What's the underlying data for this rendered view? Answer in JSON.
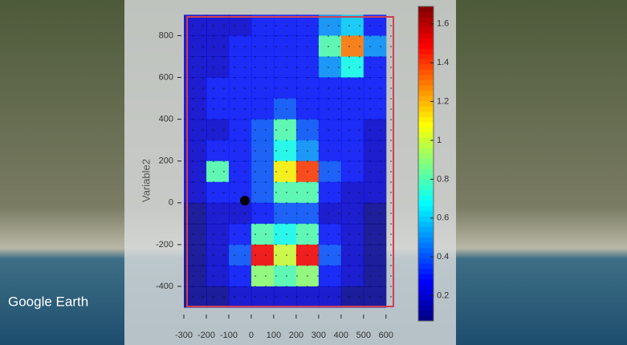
{
  "brand": "Google Earth",
  "chart_data": {
    "type": "heatmap",
    "ylabel": "Variable2",
    "x": [
      -250,
      -150,
      -50,
      50,
      150,
      250,
      350,
      450,
      550
    ],
    "y": [
      850,
      750,
      650,
      550,
      450,
      350,
      250,
      150,
      50,
      -50,
      -150,
      -250,
      -350,
      -450
    ],
    "z": [
      [
        0.2,
        0.2,
        0.2,
        0.3,
        0.3,
        0.3,
        0.5,
        0.6,
        0.3
      ],
      [
        0.2,
        0.2,
        0.3,
        0.3,
        0.3,
        0.3,
        0.8,
        1.3,
        0.5
      ],
      [
        0.2,
        0.2,
        0.3,
        0.3,
        0.3,
        0.3,
        0.5,
        0.7,
        0.3
      ],
      [
        0.2,
        0.3,
        0.3,
        0.3,
        0.3,
        0.3,
        0.3,
        0.3,
        0.3
      ],
      [
        0.2,
        0.3,
        0.3,
        0.3,
        0.4,
        0.3,
        0.3,
        0.3,
        0.3
      ],
      [
        0.2,
        0.2,
        0.3,
        0.4,
        0.8,
        0.4,
        0.3,
        0.3,
        0.2
      ],
      [
        0.2,
        0.3,
        0.3,
        0.4,
        0.7,
        0.5,
        0.3,
        0.3,
        0.2
      ],
      [
        0.2,
        0.8,
        0.3,
        0.4,
        1.1,
        1.4,
        0.4,
        0.3,
        0.2
      ],
      [
        0.2,
        0.3,
        0.3,
        0.4,
        0.8,
        0.8,
        0.3,
        0.2,
        0.2
      ],
      [
        0.1,
        0.2,
        0.2,
        0.3,
        0.4,
        0.4,
        0.2,
        0.2,
        0.1
      ],
      [
        0.1,
        0.2,
        0.3,
        0.8,
        0.7,
        0.8,
        0.3,
        0.2,
        0.1
      ],
      [
        0.1,
        0.2,
        0.4,
        1.5,
        1.0,
        1.5,
        0.4,
        0.2,
        0.1
      ],
      [
        0.1,
        0.2,
        0.3,
        0.9,
        0.8,
        0.9,
        0.3,
        0.2,
        0.1
      ],
      [
        0.1,
        0.1,
        0.2,
        0.2,
        0.2,
        0.2,
        0.2,
        0.1,
        0.1
      ]
    ],
    "xlim": [
      -300,
      640
    ],
    "xticks": [
      -300,
      -200,
      -100,
      0,
      100,
      200,
      300,
      400,
      500,
      600
    ],
    "ylim": [
      -500,
      890
    ],
    "yticks": [
      -400,
      -200,
      0,
      200,
      400,
      600,
      800
    ],
    "clim": [
      0.07,
      1.69
    ],
    "cticks": [
      0.2,
      0.4,
      0.6,
      0.8,
      1,
      1.2,
      1.4,
      1.6
    ],
    "colormap": "jet"
  }
}
